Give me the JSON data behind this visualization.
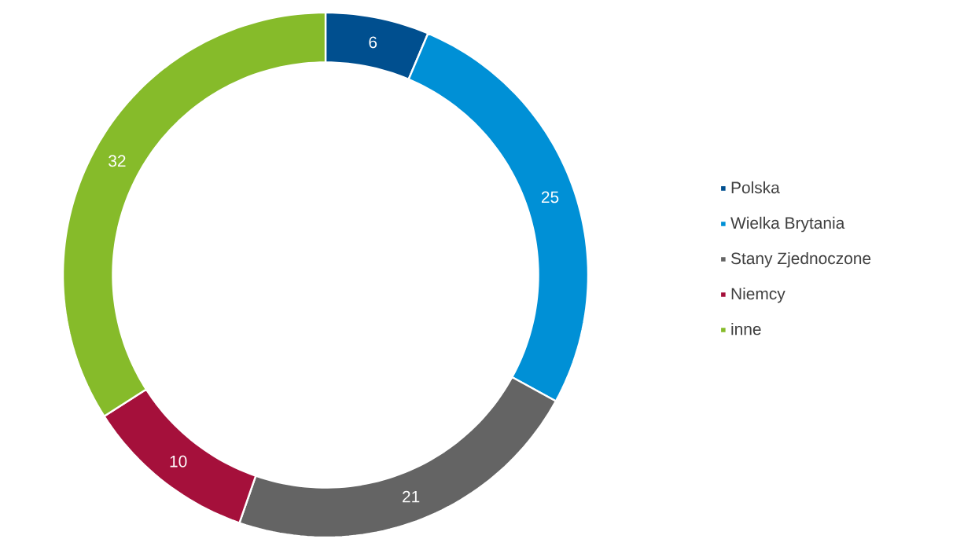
{
  "chart_data": {
    "type": "donut",
    "categories": [
      "Polska",
      "Wielka Brytania",
      "Stany Zjednoczone",
      "Niemcy",
      "inne"
    ],
    "values": [
      6,
      25,
      21,
      10,
      32
    ],
    "colors": [
      "#004f8f",
      "#0090d6",
      "#646464",
      "#a5103b",
      "#86bb2a"
    ],
    "data_labels": true,
    "legend": "right"
  }
}
